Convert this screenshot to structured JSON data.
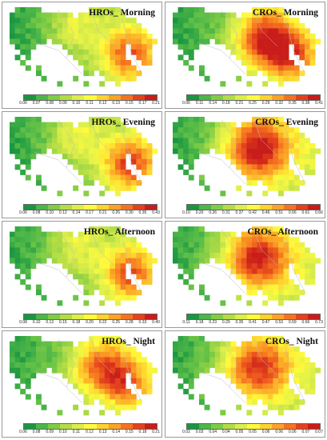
{
  "panels": [
    {
      "title": "HROs_ Morning",
      "ticks": [
        "0.06",
        "0.07",
        "0.08",
        "0.09",
        "0.10",
        "0.11",
        "0.12",
        "0.13",
        "0.15",
        "0.17",
        "0.21"
      ],
      "hot": "east",
      "level": 0.55
    },
    {
      "title": "CROs_ Morning",
      "ticks": [
        "0.06",
        "0.11",
        "0.14",
        "0.18",
        "0.21",
        "0.25",
        "0.29",
        "0.32",
        "0.35",
        "0.38",
        "0.41"
      ],
      "hot": "center-east",
      "level": 0.75
    },
    {
      "title": "HROs_ Evening",
      "ticks": [
        "0.06",
        "0.08",
        "0.10",
        "0.12",
        "0.14",
        "0.17",
        "0.21",
        "0.26",
        "0.30",
        "0.35",
        "0.43"
      ],
      "hot": "east",
      "level": 0.6
    },
    {
      "title": "CROs_ Evening",
      "ticks": [
        "0.10",
        "0.20",
        "0.26",
        "0.31",
        "0.37",
        "0.42",
        "0.46",
        "0.51",
        "0.56",
        "0.61",
        "0.66"
      ],
      "hot": "center",
      "level": 0.8
    },
    {
      "title": "HROs_ Afternoon",
      "ticks": [
        "0.08",
        "0.10",
        "0.13",
        "0.15",
        "0.18",
        "0.20",
        "0.22",
        "0.25",
        "0.28",
        "0.33",
        "0.40"
      ],
      "hot": "east",
      "level": 0.55
    },
    {
      "title": "CROs_ Afternoon",
      "ticks": [
        "0.11",
        "0.18",
        "0.23",
        "0.29",
        "0.35",
        "0.41",
        "0.47",
        "0.53",
        "0.59",
        "0.66",
        "0.73"
      ],
      "hot": "center",
      "level": 0.75
    },
    {
      "title": "HROs_ Night",
      "ticks": [
        "0.06",
        "0.08",
        "0.09",
        "0.10",
        "0.11",
        "0.12",
        "0.13",
        "0.14",
        "0.15",
        "0.18",
        "0.21"
      ],
      "hot": "center-east",
      "level": 0.6
    },
    {
      "title": "CROs_ Night",
      "ticks": [
        "0.02",
        "0.03",
        "0.04",
        "0.04",
        "0.05",
        "0.05",
        "0.06",
        "0.06",
        "0.06",
        "0.07",
        "0.07"
      ],
      "hot": "center",
      "level": 0.7
    }
  ],
  "legend_colors": [
    "#1a9641",
    "#4cb648",
    "#7fcc45",
    "#b3dd45",
    "#dcee4a",
    "#fffb3c",
    "#fed22f",
    "#fca326",
    "#f57320",
    "#e3421c",
    "#c81d1a"
  ]
}
